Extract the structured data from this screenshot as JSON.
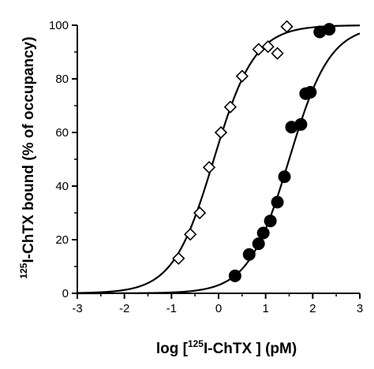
{
  "chart_data": {
    "type": "scatter",
    "xlabel": {
      "pre": "log [",
      "sup": "125",
      "post": "I-ChTX ] (pM)"
    },
    "ylabel": {
      "sup": "125",
      "post": "I-ChTX bound (% of occupancy)"
    },
    "xlim": [
      -3,
      3
    ],
    "ylim": [
      0,
      100
    ],
    "x_ticks": [
      "-3",
      "-2",
      "-1",
      "0",
      "1",
      "2",
      "3"
    ],
    "y_ticks": [
      "0",
      "20",
      "40",
      "60",
      "80",
      "100"
    ],
    "grid": false,
    "legend": "none",
    "series": [
      {
        "marker": "open-diamond",
        "color": "#000000",
        "fit": {
          "model": "logistic",
          "ec50_log": -0.1,
          "hill": 1.0,
          "top": 100
        },
        "points": [
          {
            "x": -0.85,
            "y": 13
          },
          {
            "x": -0.6,
            "y": 22
          },
          {
            "x": -0.4,
            "y": 30
          },
          {
            "x": -0.2,
            "y": 47
          },
          {
            "x": 0.05,
            "y": 60
          },
          {
            "x": 0.25,
            "y": 69.5
          },
          {
            "x": 0.5,
            "y": 81
          },
          {
            "x": 0.85,
            "y": 91
          },
          {
            "x": 1.05,
            "y": 92
          },
          {
            "x": 1.25,
            "y": 89.5
          },
          {
            "x": 1.45,
            "y": 99.5
          }
        ]
      },
      {
        "marker": "filled-circle",
        "color": "#000000",
        "fit": {
          "model": "logistic",
          "ec50_log": 1.5,
          "hill": 1.0,
          "top": 100
        },
        "points": [
          {
            "x": 0.35,
            "y": 6.5
          },
          {
            "x": 0.65,
            "y": 14.5
          },
          {
            "x": 0.85,
            "y": 18.5
          },
          {
            "x": 0.95,
            "y": 22.5
          },
          {
            "x": 1.1,
            "y": 27
          },
          {
            "x": 1.25,
            "y": 34
          },
          {
            "x": 1.4,
            "y": 43.5
          },
          {
            "x": 1.55,
            "y": 62
          },
          {
            "x": 1.75,
            "y": 63
          },
          {
            "x": 1.85,
            "y": 74.5
          },
          {
            "x": 1.95,
            "y": 75
          },
          {
            "x": 2.15,
            "y": 97.5
          },
          {
            "x": 2.35,
            "y": 98.5
          }
        ]
      }
    ]
  }
}
